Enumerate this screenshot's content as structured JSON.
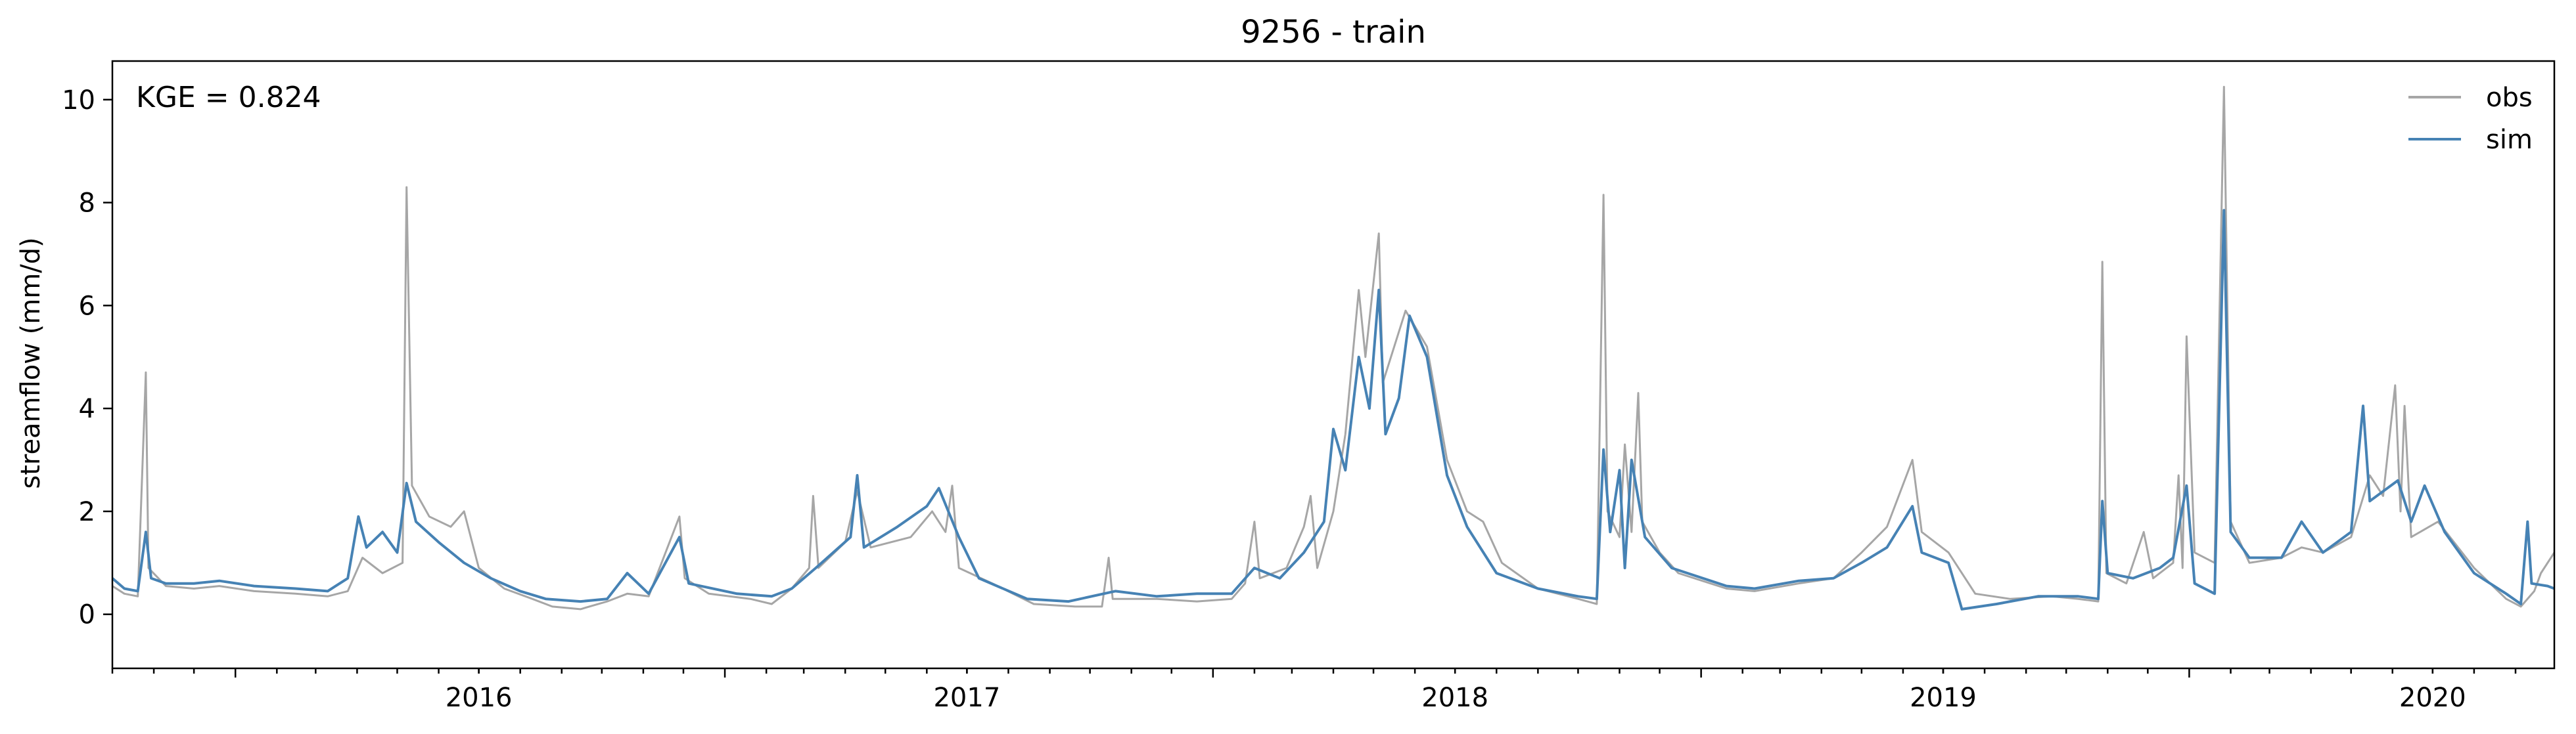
{
  "chart_data": {
    "type": "line",
    "title": "9256 - train",
    "xlabel": "",
    "ylabel": "streamflow (mm/d)",
    "annotation": "KGE = 0.824",
    "x_range": [
      "2015-10-01",
      "2020-09-30"
    ],
    "ylim": [
      -1.05,
      10.75
    ],
    "grid": false,
    "legend_position": "top-right",
    "x_tick_labels": [
      "2016",
      "2017",
      "2018",
      "2019",
      "2020"
    ],
    "y_tick_labels": [
      "0",
      "2",
      "4",
      "6",
      "8",
      "10"
    ],
    "colors": {
      "obs": "#a6a6a6",
      "sim": "#4682b4"
    },
    "series": [
      {
        "name": "obs",
        "color": "#a6a6a6",
        "points": [
          [
            "2015-10-01",
            0.55
          ],
          [
            "2015-10-10",
            0.4
          ],
          [
            "2015-10-20",
            0.35
          ],
          [
            "2015-10-26",
            4.7
          ],
          [
            "2015-10-28",
            0.9
          ],
          [
            "2015-11-10",
            0.55
          ],
          [
            "2015-12-01",
            0.5
          ],
          [
            "2015-12-20",
            0.55
          ],
          [
            "2016-01-15",
            0.45
          ],
          [
            "2016-02-15",
            0.4
          ],
          [
            "2016-03-10",
            0.35
          ],
          [
            "2016-03-25",
            0.45
          ],
          [
            "2016-04-05",
            1.1
          ],
          [
            "2016-04-20",
            0.8
          ],
          [
            "2016-05-05",
            1.0
          ],
          [
            "2016-05-08",
            8.3
          ],
          [
            "2016-05-12",
            2.5
          ],
          [
            "2016-05-25",
            1.9
          ],
          [
            "2016-06-10",
            1.7
          ],
          [
            "2016-06-20",
            2.0
          ],
          [
            "2016-07-01",
            0.9
          ],
          [
            "2016-07-20",
            0.5
          ],
          [
            "2016-08-10",
            0.3
          ],
          [
            "2016-08-25",
            0.15
          ],
          [
            "2016-09-15",
            0.1
          ],
          [
            "2016-10-05",
            0.25
          ],
          [
            "2016-10-20",
            0.4
          ],
          [
            "2016-11-05",
            0.35
          ],
          [
            "2016-11-28",
            1.9
          ],
          [
            "2016-12-02",
            0.7
          ],
          [
            "2016-12-20",
            0.4
          ],
          [
            "2017-01-20",
            0.3
          ],
          [
            "2017-02-05",
            0.2
          ],
          [
            "2017-02-20",
            0.5
          ],
          [
            "2017-03-05",
            0.9
          ],
          [
            "2017-03-08",
            2.3
          ],
          [
            "2017-03-12",
            0.9
          ],
          [
            "2017-04-01",
            1.4
          ],
          [
            "2017-04-10",
            2.4
          ],
          [
            "2017-04-20",
            1.3
          ],
          [
            "2017-05-20",
            1.5
          ],
          [
            "2017-06-05",
            2.0
          ],
          [
            "2017-06-15",
            1.6
          ],
          [
            "2017-06-20",
            2.5
          ],
          [
            "2017-06-25",
            0.9
          ],
          [
            "2017-07-20",
            0.6
          ],
          [
            "2017-08-20",
            0.2
          ],
          [
            "2017-09-20",
            0.15
          ],
          [
            "2017-10-10",
            0.15
          ],
          [
            "2017-10-15",
            1.1
          ],
          [
            "2017-10-18",
            0.3
          ],
          [
            "2017-11-20",
            0.3
          ],
          [
            "2017-12-20",
            0.25
          ],
          [
            "2018-01-15",
            0.3
          ],
          [
            "2018-01-25",
            0.6
          ],
          [
            "2018-02-01",
            1.8
          ],
          [
            "2018-02-05",
            0.7
          ],
          [
            "2018-02-25",
            0.9
          ],
          [
            "2018-03-10",
            1.7
          ],
          [
            "2018-03-15",
            2.3
          ],
          [
            "2018-03-20",
            0.9
          ],
          [
            "2018-04-01",
            2.0
          ],
          [
            "2018-04-10",
            3.5
          ],
          [
            "2018-04-20",
            6.3
          ],
          [
            "2018-04-25",
            5.0
          ],
          [
            "2018-05-05",
            7.4
          ],
          [
            "2018-05-08",
            4.5
          ],
          [
            "2018-05-25",
            5.9
          ],
          [
            "2018-06-10",
            5.2
          ],
          [
            "2018-06-25",
            3.0
          ],
          [
            "2018-07-10",
            2.0
          ],
          [
            "2018-07-22",
            1.8
          ],
          [
            "2018-08-05",
            1.0
          ],
          [
            "2018-09-01",
            0.5
          ],
          [
            "2018-10-01",
            0.3
          ],
          [
            "2018-10-15",
            0.2
          ],
          [
            "2018-10-20",
            8.15
          ],
          [
            "2018-10-23",
            2.0
          ],
          [
            "2018-11-01",
            1.5
          ],
          [
            "2018-11-05",
            3.3
          ],
          [
            "2018-11-10",
            1.6
          ],
          [
            "2018-11-15",
            4.3
          ],
          [
            "2018-11-18",
            1.8
          ],
          [
            "2018-12-01",
            1.2
          ],
          [
            "2018-12-15",
            0.8
          ],
          [
            "2019-01-20",
            0.5
          ],
          [
            "2019-02-10",
            0.45
          ],
          [
            "2019-03-15",
            0.6
          ],
          [
            "2019-04-10",
            0.7
          ],
          [
            "2019-05-01",
            1.2
          ],
          [
            "2019-05-20",
            1.7
          ],
          [
            "2019-06-08",
            3.0
          ],
          [
            "2019-06-15",
            1.6
          ],
          [
            "2019-07-05",
            1.2
          ],
          [
            "2019-07-25",
            0.4
          ],
          [
            "2019-08-20",
            0.3
          ],
          [
            "2019-09-20",
            0.35
          ],
          [
            "2019-10-10",
            0.3
          ],
          [
            "2019-10-25",
            0.25
          ],
          [
            "2019-10-28",
            6.85
          ],
          [
            "2019-10-31",
            0.8
          ],
          [
            "2019-11-15",
            0.6
          ],
          [
            "2019-11-28",
            1.6
          ],
          [
            "2019-12-05",
            0.7
          ],
          [
            "2019-12-20",
            1.0
          ],
          [
            "2019-12-24",
            2.7
          ],
          [
            "2019-12-27",
            0.9
          ],
          [
            "2019-12-30",
            5.4
          ],
          [
            "2020-01-05",
            1.2
          ],
          [
            "2020-01-20",
            1.0
          ],
          [
            "2020-01-27",
            10.25
          ],
          [
            "2020-02-01",
            1.8
          ],
          [
            "2020-02-15",
            1.0
          ],
          [
            "2020-03-10",
            1.1
          ],
          [
            "2020-03-25",
            1.3
          ],
          [
            "2020-04-10",
            1.2
          ],
          [
            "2020-05-01",
            1.5
          ],
          [
            "2020-05-15",
            2.7
          ],
          [
            "2020-05-25",
            2.3
          ],
          [
            "2020-06-03",
            4.45
          ],
          [
            "2020-06-07",
            2.0
          ],
          [
            "2020-06-10",
            4.05
          ],
          [
            "2020-06-15",
            1.5
          ],
          [
            "2020-07-05",
            1.8
          ],
          [
            "2020-08-01",
            0.9
          ],
          [
            "2020-08-25",
            0.3
          ],
          [
            "2020-09-05",
            0.15
          ],
          [
            "2020-09-15",
            0.45
          ],
          [
            "2020-09-20",
            0.8
          ],
          [
            "2020-09-30",
            1.2
          ]
        ]
      },
      {
        "name": "sim",
        "color": "#4682b4",
        "points": [
          [
            "2015-10-01",
            0.7
          ],
          [
            "2015-10-10",
            0.5
          ],
          [
            "2015-10-20",
            0.45
          ],
          [
            "2015-10-26",
            1.6
          ],
          [
            "2015-10-30",
            0.7
          ],
          [
            "2015-11-10",
            0.6
          ],
          [
            "2015-12-01",
            0.6
          ],
          [
            "2015-12-20",
            0.65
          ],
          [
            "2016-01-15",
            0.55
          ],
          [
            "2016-02-15",
            0.5
          ],
          [
            "2016-03-10",
            0.45
          ],
          [
            "2016-03-25",
            0.7
          ],
          [
            "2016-04-02",
            1.9
          ],
          [
            "2016-04-08",
            1.3
          ],
          [
            "2016-04-20",
            1.6
          ],
          [
            "2016-05-01",
            1.2
          ],
          [
            "2016-05-08",
            2.55
          ],
          [
            "2016-05-15",
            1.8
          ],
          [
            "2016-06-01",
            1.4
          ],
          [
            "2016-06-20",
            1.0
          ],
          [
            "2016-07-10",
            0.7
          ],
          [
            "2016-08-01",
            0.45
          ],
          [
            "2016-08-20",
            0.3
          ],
          [
            "2016-09-15",
            0.25
          ],
          [
            "2016-10-05",
            0.3
          ],
          [
            "2016-10-20",
            0.8
          ],
          [
            "2016-11-05",
            0.4
          ],
          [
            "2016-11-28",
            1.5
          ],
          [
            "2016-12-05",
            0.6
          ],
          [
            "2017-01-10",
            0.4
          ],
          [
            "2017-02-05",
            0.35
          ],
          [
            "2017-02-20",
            0.5
          ],
          [
            "2017-03-10",
            0.9
          ],
          [
            "2017-04-05",
            1.5
          ],
          [
            "2017-04-10",
            2.7
          ],
          [
            "2017-04-15",
            1.3
          ],
          [
            "2017-05-10",
            1.7
          ],
          [
            "2017-06-01",
            2.1
          ],
          [
            "2017-06-10",
            2.45
          ],
          [
            "2017-06-25",
            1.5
          ],
          [
            "2017-07-10",
            0.7
          ],
          [
            "2017-08-15",
            0.3
          ],
          [
            "2017-09-15",
            0.25
          ],
          [
            "2017-10-20",
            0.45
          ],
          [
            "2017-11-20",
            0.35
          ],
          [
            "2017-12-20",
            0.4
          ],
          [
            "2018-01-15",
            0.4
          ],
          [
            "2018-02-01",
            0.9
          ],
          [
            "2018-02-20",
            0.7
          ],
          [
            "2018-03-10",
            1.2
          ],
          [
            "2018-03-25",
            1.8
          ],
          [
            "2018-04-01",
            3.6
          ],
          [
            "2018-04-10",
            2.8
          ],
          [
            "2018-04-20",
            5.0
          ],
          [
            "2018-04-28",
            4.0
          ],
          [
            "2018-05-05",
            6.3
          ],
          [
            "2018-05-10",
            3.5
          ],
          [
            "2018-05-20",
            4.2
          ],
          [
            "2018-05-28",
            5.8
          ],
          [
            "2018-06-10",
            5.0
          ],
          [
            "2018-06-25",
            2.7
          ],
          [
            "2018-07-10",
            1.7
          ],
          [
            "2018-08-01",
            0.8
          ],
          [
            "2018-09-01",
            0.5
          ],
          [
            "2018-10-01",
            0.35
          ],
          [
            "2018-10-15",
            0.3
          ],
          [
            "2018-10-20",
            3.2
          ],
          [
            "2018-10-25",
            1.6
          ],
          [
            "2018-11-01",
            2.8
          ],
          [
            "2018-11-05",
            0.9
          ],
          [
            "2018-11-10",
            3.0
          ],
          [
            "2018-11-20",
            1.5
          ],
          [
            "2018-12-10",
            0.9
          ],
          [
            "2019-01-20",
            0.55
          ],
          [
            "2019-02-10",
            0.5
          ],
          [
            "2019-03-15",
            0.65
          ],
          [
            "2019-04-10",
            0.7
          ],
          [
            "2019-05-01",
            1.0
          ],
          [
            "2019-05-20",
            1.3
          ],
          [
            "2019-06-08",
            2.1
          ],
          [
            "2019-06-15",
            1.2
          ],
          [
            "2019-07-05",
            1.0
          ],
          [
            "2019-07-15",
            0.1
          ],
          [
            "2019-08-10",
            0.2
          ],
          [
            "2019-09-10",
            0.35
          ],
          [
            "2019-10-10",
            0.35
          ],
          [
            "2019-10-25",
            0.3
          ],
          [
            "2019-10-28",
            2.2
          ],
          [
            "2019-11-01",
            0.8
          ],
          [
            "2019-11-20",
            0.7
          ],
          [
            "2019-12-10",
            0.9
          ],
          [
            "2019-12-20",
            1.1
          ],
          [
            "2019-12-30",
            2.5
          ],
          [
            "2020-01-05",
            0.6
          ],
          [
            "2020-01-20",
            0.4
          ],
          [
            "2020-01-27",
            7.85
          ],
          [
            "2020-02-01",
            1.6
          ],
          [
            "2020-02-15",
            1.1
          ],
          [
            "2020-03-10",
            1.1
          ],
          [
            "2020-03-25",
            1.8
          ],
          [
            "2020-04-10",
            1.2
          ],
          [
            "2020-05-01",
            1.6
          ],
          [
            "2020-05-10",
            4.05
          ],
          [
            "2020-05-15",
            2.2
          ],
          [
            "2020-06-05",
            2.6
          ],
          [
            "2020-06-15",
            1.8
          ],
          [
            "2020-06-25",
            2.5
          ],
          [
            "2020-07-10",
            1.6
          ],
          [
            "2020-08-01",
            0.8
          ],
          [
            "2020-08-25",
            0.4
          ],
          [
            "2020-09-05",
            0.2
          ],
          [
            "2020-09-10",
            1.8
          ],
          [
            "2020-09-13",
            0.6
          ],
          [
            "2020-09-25",
            0.55
          ],
          [
            "2020-09-30",
            0.5
          ]
        ]
      }
    ]
  }
}
